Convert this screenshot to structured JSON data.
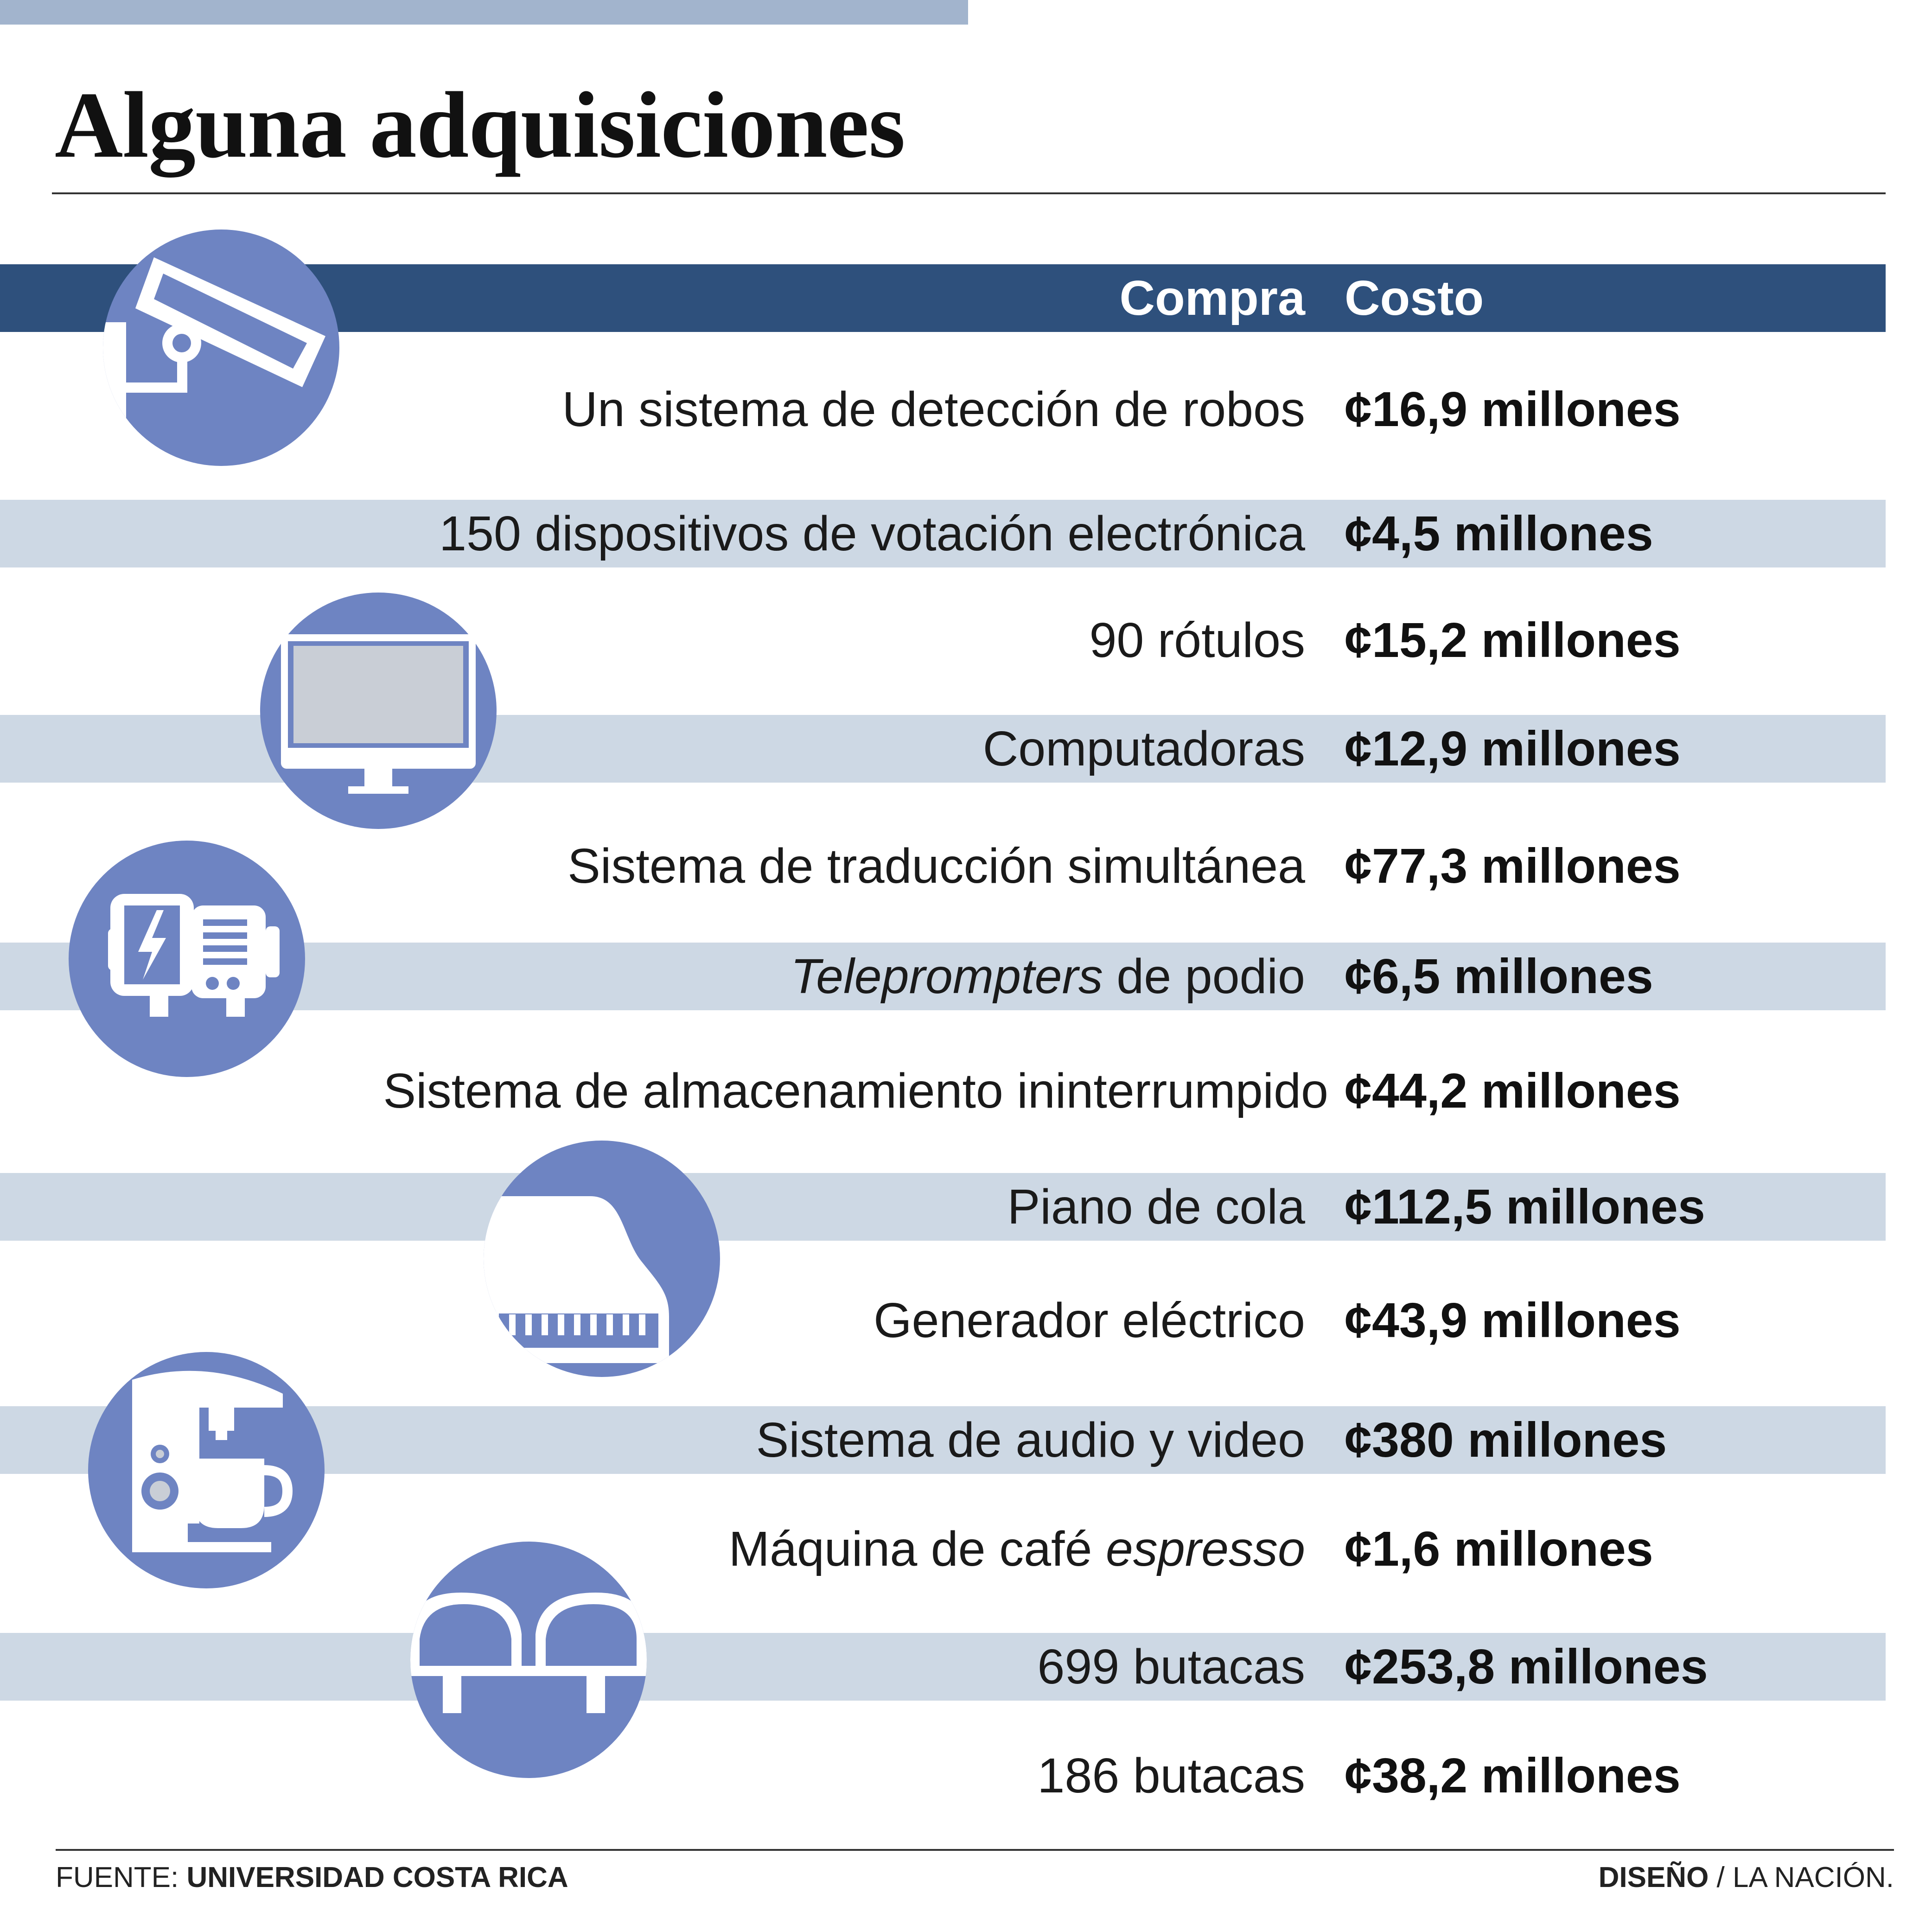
{
  "title": "Alguna adquisiciones",
  "header": {
    "compra": "Compra",
    "costo": "Costo"
  },
  "rows": [
    {
      "prefix_italic": "",
      "item": "Un sistema de detección de robos",
      "suffix_italic": "",
      "cost": "¢16,9 millones"
    },
    {
      "prefix_italic": "",
      "item": "150 dispositivos de votación electrónica",
      "suffix_italic": "",
      "cost": "¢4,5 millones"
    },
    {
      "prefix_italic": "",
      "item": "90 rótulos",
      "suffix_italic": "",
      "cost": "¢15,2 millones"
    },
    {
      "prefix_italic": "",
      "item": "Computadoras",
      "suffix_italic": "",
      "cost": "¢12,9 millones"
    },
    {
      "prefix_italic": "",
      "item": "Sistema de traducción simultánea",
      "suffix_italic": "",
      "cost": "¢77,3 millones"
    },
    {
      "prefix_italic": "Teleprompters",
      "item": " de podio",
      "suffix_italic": "",
      "cost": "¢6,5 millones"
    },
    {
      "prefix_italic": "",
      "item": "Sistema de almacenamiento ininterrumpido",
      "suffix_italic": "",
      "cost": "¢44,2 millones"
    },
    {
      "prefix_italic": "",
      "item": "Piano de cola",
      "suffix_italic": "",
      "cost": "¢112,5 millones"
    },
    {
      "prefix_italic": "",
      "item": "Generador eléctrico",
      "suffix_italic": "",
      "cost": "¢43,9 millones"
    },
    {
      "prefix_italic": "",
      "item": "Sistema de audio y video",
      "suffix_italic": "",
      "cost": "¢380 millones"
    },
    {
      "prefix_italic": "",
      "item": "Máquina de café ",
      "suffix_italic": "espresso",
      "cost": "¢1,6 millones"
    },
    {
      "prefix_italic": "",
      "item": "699 butacas",
      "suffix_italic": "",
      "cost": "¢253,8 millones"
    },
    {
      "prefix_italic": "",
      "item": "186 butacas",
      "suffix_italic": "",
      "cost": "¢38,2 millones"
    }
  ],
  "footer": {
    "source_label": "FUENTE: ",
    "source_value": "UNIVERSIDAD COSTA RICA",
    "design_label": "DISEÑO",
    "design_sep": " / ",
    "design_value": "LA NACIÓN."
  },
  "colors": {
    "header_bar": "#2e507c",
    "band": "#cdd8e4",
    "top_bar": "#a2b4cd",
    "icon_circle": "#6e84c2"
  },
  "icons": [
    "security-camera-icon",
    "computer-monitor-icon",
    "electric-generator-icon",
    "grand-piano-icon",
    "coffee-machine-icon",
    "theater-seats-icon"
  ]
}
